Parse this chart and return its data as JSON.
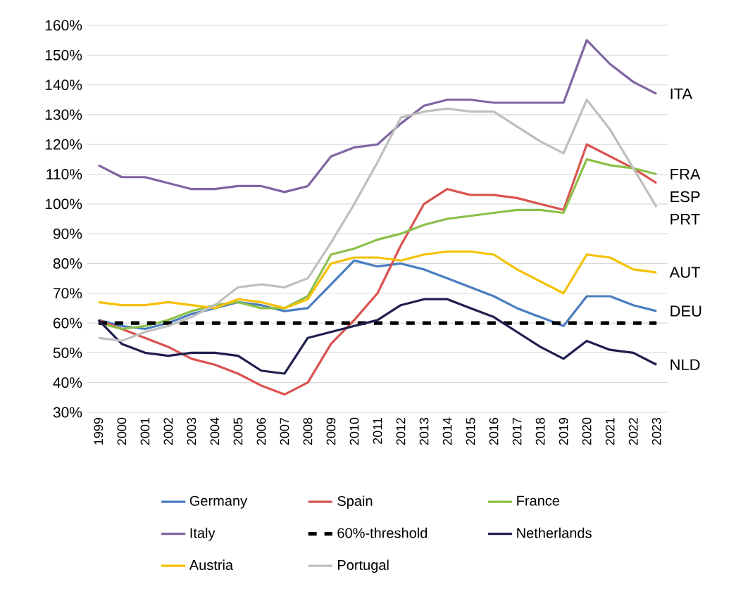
{
  "chart_data": {
    "type": "line",
    "categories": [
      "1999",
      "2000",
      "2001",
      "2002",
      "2003",
      "2004",
      "2005",
      "2006",
      "2007",
      "2008",
      "2009",
      "2010",
      "2011",
      "2012",
      "2013",
      "2014",
      "2015",
      "2016",
      "2017",
      "2018",
      "2019",
      "2020",
      "2021",
      "2022",
      "2023"
    ],
    "series": [
      {
        "name": "Germany",
        "color": "#4a7ebf",
        "values": [
          61,
          59,
          58,
          60,
          63,
          65,
          67,
          66,
          64,
          65,
          73,
          81,
          79,
          80,
          78,
          75,
          72,
          69,
          65,
          62,
          59,
          69,
          69,
          66,
          64
        ]
      },
      {
        "name": "Spain",
        "color": "#d9534f",
        "values": [
          61,
          58,
          55,
          52,
          48,
          46,
          43,
          39,
          36,
          40,
          53,
          61,
          70,
          86,
          100,
          105,
          103,
          103,
          102,
          100,
          98,
          120,
          116,
          112,
          107
        ]
      },
      {
        "name": "France",
        "color": "#8cbf4a",
        "values": [
          60,
          58,
          59,
          61,
          64,
          66,
          67,
          65,
          65,
          69,
          83,
          85,
          88,
          90,
          93,
          95,
          96,
          97,
          98,
          98,
          97,
          115,
          113,
          112,
          110
        ]
      },
      {
        "name": "Italy",
        "color": "#8064a2",
        "values": [
          113,
          109,
          109,
          107,
          105,
          105,
          106,
          106,
          104,
          106,
          116,
          119,
          120,
          127,
          133,
          135,
          135,
          134,
          134,
          134,
          134,
          155,
          147,
          141,
          137
        ]
      },
      {
        "name": "60%-threshold",
        "color": "#000000",
        "line_style": "dashed",
        "values": [
          60,
          60,
          60,
          60,
          60,
          60,
          60,
          60,
          60,
          60,
          60,
          60,
          60,
          60,
          60,
          60,
          60,
          60,
          60,
          60,
          60,
          60,
          60,
          60,
          60
        ]
      },
      {
        "name": "Netherlands",
        "color": "#1f1f4f",
        "values": [
          61,
          53,
          50,
          49,
          50,
          50,
          49,
          44,
          43,
          55,
          57,
          59,
          61,
          66,
          68,
          68,
          65,
          62,
          57,
          52,
          48,
          54,
          51,
          50,
          46
        ]
      },
      {
        "name": "Austria",
        "color": "#f5c000",
        "values": [
          67,
          66,
          66,
          67,
          66,
          65,
          68,
          67,
          65,
          68,
          80,
          82,
          82,
          81,
          83,
          84,
          84,
          83,
          78,
          74,
          70,
          83,
          82,
          78,
          77
        ]
      },
      {
        "name": "Portugal",
        "color": "#bfbfbf",
        "values": [
          55,
          54,
          57,
          59,
          62,
          66,
          72,
          73,
          72,
          75,
          87,
          100,
          114,
          129,
          131,
          132,
          131,
          131,
          126,
          121,
          117,
          135,
          125,
          112,
          99
        ]
      }
    ],
    "ylim": [
      30,
      160
    ],
    "yticks": [
      {
        "value": 30,
        "label": "30%"
      },
      {
        "value": 40,
        "label": "40%"
      },
      {
        "value": 50,
        "label": "50%"
      },
      {
        "value": 60,
        "label": "60%"
      },
      {
        "value": 70,
        "label": "70%"
      },
      {
        "value": 80,
        "label": "80%"
      },
      {
        "value": 90,
        "label": "90%"
      },
      {
        "value": 100,
        "label": "100%"
      },
      {
        "value": 110,
        "label": "110%"
      },
      {
        "value": 120,
        "label": "120%"
      },
      {
        "value": 130,
        "label": "130%"
      },
      {
        "value": 140,
        "label": "140%"
      },
      {
        "value": 150,
        "label": "150%"
      },
      {
        "value": 160,
        "label": "160%"
      }
    ],
    "annotations": [
      {
        "text": "ITA",
        "x": "2023",
        "y": 137
      },
      {
        "text": "FRA",
        "x": "2023",
        "y": 110
      },
      {
        "text": "ESP",
        "x": "2023",
        "y": 107
      },
      {
        "text": "PRT",
        "x": "2023",
        "y": 99
      },
      {
        "text": "AUT",
        "x": "2023",
        "y": 77
      },
      {
        "text": "DEU",
        "x": "2023",
        "y": 64
      },
      {
        "text": "NLD",
        "x": "2023",
        "y": 46
      }
    ],
    "grid": "y",
    "legend": "bottom",
    "marker": "none",
    "line_style": "solid"
  }
}
